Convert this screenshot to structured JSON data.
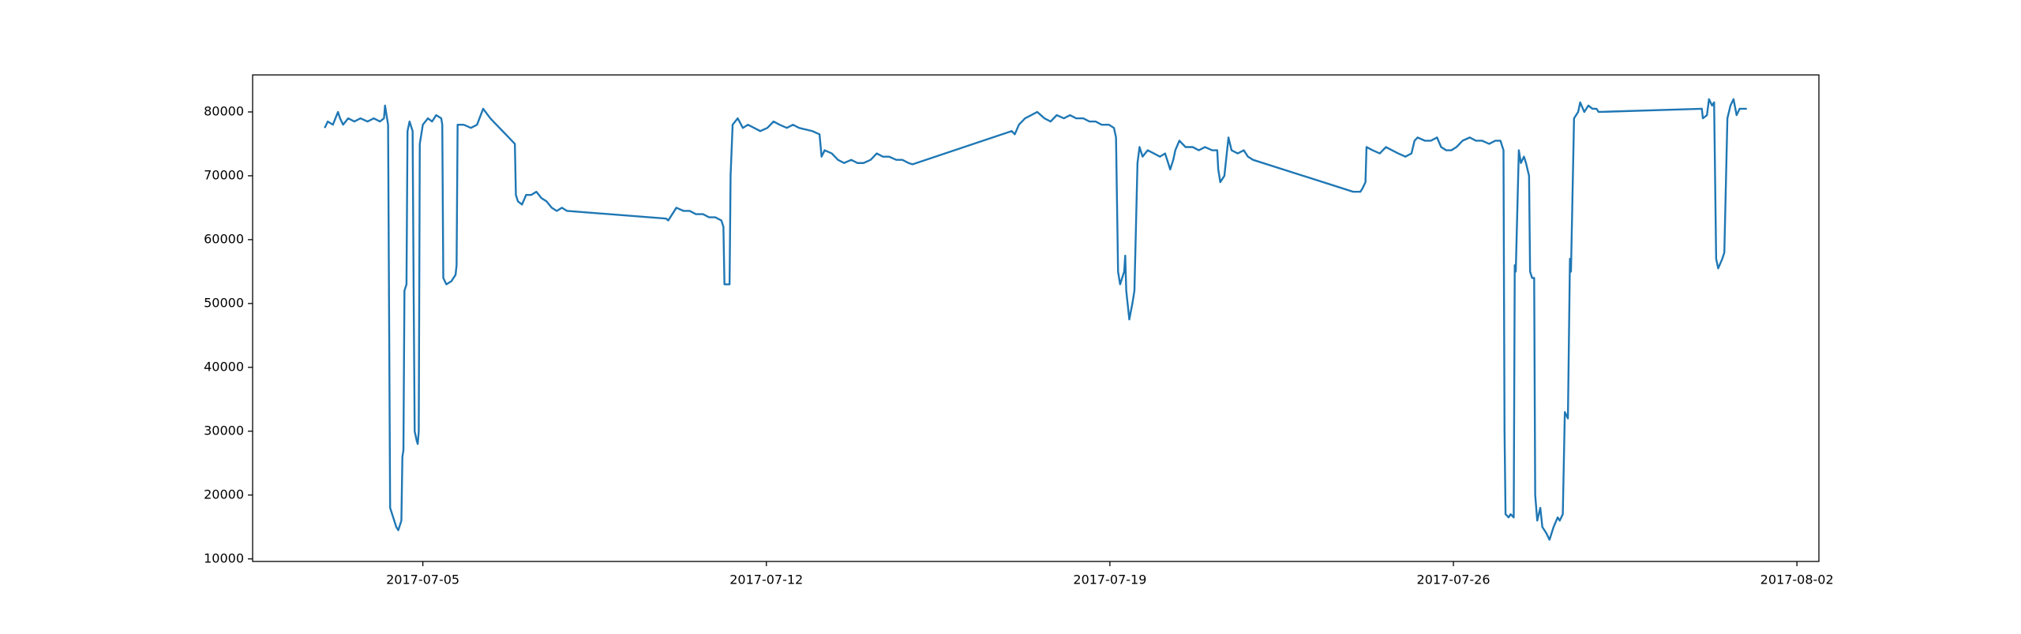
{
  "chart_data": {
    "type": "line",
    "color": "#1f77b4",
    "grid": false,
    "xlim": [
      "2017-07-01 12:45",
      "2017-08-02 10:45"
    ],
    "xticks": [
      "2017-07-05",
      "2017-07-12",
      "2017-07-19",
      "2017-07-26",
      "2017-08-02"
    ],
    "ylim": [
      9600,
      85800
    ],
    "yticks": [
      10000,
      20000,
      30000,
      40000,
      50000,
      60000,
      70000,
      80000
    ],
    "x": [
      "2017-07-03 00:00",
      "2017-07-03 01:30",
      "2017-07-03 04:00",
      "2017-07-03 06:30",
      "2017-07-03 07:30",
      "2017-07-03 09:00",
      "2017-07-03 11:30",
      "2017-07-03 14:30",
      "2017-07-03 17:30",
      "2017-07-03 21:00",
      "2017-07-04 00:00",
      "2017-07-04 03:00",
      "2017-07-04 05:00",
      "2017-07-04 05:30",
      "2017-07-04 06:30",
      "2017-07-04 07:00",
      "2017-07-04 08:00",
      "2017-07-04 09:30",
      "2017-07-04 11:00",
      "2017-07-04 12:00",
      "2017-07-04 13:30",
      "2017-07-04 14:00",
      "2017-07-04 14:30",
      "2017-07-04 15:00",
      "2017-07-04 16:00",
      "2017-07-04 16:30",
      "2017-07-04 17:30",
      "2017-07-04 19:00",
      "2017-07-04 19:30",
      "2017-07-04 20:00",
      "2017-07-04 21:00",
      "2017-07-04 21:30",
      "2017-07-04 22:00",
      "2017-07-04 22:30",
      "2017-07-05 00:00",
      "2017-07-05 02:30",
      "2017-07-05 04:30",
      "2017-07-05 06:30",
      "2017-07-05 09:00",
      "2017-07-05 09:30",
      "2017-07-05 10:00",
      "2017-07-05 11:30",
      "2017-07-05 14:00",
      "2017-07-05 16:00",
      "2017-07-05 16:30",
      "2017-07-05 17:00",
      "2017-07-05 20:00",
      "2017-07-05 23:30",
      "2017-07-06 02:30",
      "2017-07-06 05:30",
      "2017-07-06 09:00",
      "2017-07-06 12:00",
      "2017-07-06 15:00",
      "2017-07-06 18:00",
      "2017-07-06 19:30",
      "2017-07-06 21:00",
      "2017-07-06 21:30",
      "2017-07-06 22:30",
      "2017-07-07 00:30",
      "2017-07-07 02:30",
      "2017-07-07 05:00",
      "2017-07-07 07:30",
      "2017-07-07 10:00",
      "2017-07-07 12:30",
      "2017-07-07 15:00",
      "2017-07-07 17:30",
      "2017-07-07 20:00",
      "2017-07-07 22:30",
      "2017-07-09 23:00",
      "2017-07-10 00:00",
      "2017-07-10 01:00",
      "2017-07-10 04:00",
      "2017-07-10 07:30",
      "2017-07-10 10:30",
      "2017-07-10 13:30",
      "2017-07-10 17:00",
      "2017-07-10 20:00",
      "2017-07-10 23:00",
      "2017-07-11 02:00",
      "2017-07-11 03:00",
      "2017-07-11 03:30",
      "2017-07-11 05:00",
      "2017-07-11 06:00",
      "2017-07-11 06:30",
      "2017-07-11 07:30",
      "2017-07-11 10:00",
      "2017-07-11 12:30",
      "2017-07-11 15:00",
      "2017-07-11 18:00",
      "2017-07-11 21:00",
      "2017-07-12 00:30",
      "2017-07-12 03:30",
      "2017-07-12 06:30",
      "2017-07-12 10:00",
      "2017-07-12 13:00",
      "2017-07-12 16:00",
      "2017-07-12 22:30",
      "2017-07-13 02:00",
      "2017-07-13 03:00",
      "2017-07-13 04:30",
      "2017-07-13 08:00",
      "2017-07-13 11:00",
      "2017-07-13 14:00",
      "2017-07-13 17:30",
      "2017-07-13 20:30",
      "2017-07-13 23:30",
      "2017-07-14 03:00",
      "2017-07-14 06:00",
      "2017-07-14 09:00",
      "2017-07-14 12:00",
      "2017-07-14 15:30",
      "2017-07-14 18:30",
      "2017-07-14 21:30",
      "2017-07-14 23:30",
      "2017-07-17 00:00",
      "2017-07-17 01:30",
      "2017-07-17 03:30",
      "2017-07-17 06:30",
      "2017-07-17 09:30",
      "2017-07-17 12:30",
      "2017-07-17 16:00",
      "2017-07-17 19:00",
      "2017-07-17 22:00",
      "2017-07-18 01:30",
      "2017-07-18 04:30",
      "2017-07-18 07:30",
      "2017-07-18 11:00",
      "2017-07-18 14:00",
      "2017-07-18 17:00",
      "2017-07-18 20:00",
      "2017-07-18 23:30",
      "2017-07-19 02:00",
      "2017-07-19 03:00",
      "2017-07-19 04:00",
      "2017-07-19 05:00",
      "2017-07-19 07:00",
      "2017-07-19 07:30",
      "2017-07-19 08:00",
      "2017-07-19 09:30",
      "2017-07-19 11:00",
      "2017-07-19 12:00",
      "2017-07-19 13:30",
      "2017-07-19 14:30",
      "2017-07-19 16:00",
      "2017-07-19 18:30",
      "2017-07-19 21:30",
      "2017-07-20 00:30",
      "2017-07-20 03:00",
      "2017-07-20 04:30",
      "2017-07-20 05:30",
      "2017-07-20 07:00",
      "2017-07-20 08:00",
      "2017-07-20 10:00",
      "2017-07-20 13:00",
      "2017-07-20 16:30",
      "2017-07-20 19:30",
      "2017-07-20 22:30",
      "2017-07-21 02:00",
      "2017-07-21 04:30",
      "2017-07-21 05:00",
      "2017-07-21 06:00",
      "2017-07-21 08:00",
      "2017-07-21 10:00",
      "2017-07-21 11:30",
      "2017-07-21 14:30",
      "2017-07-21 17:30",
      "2017-07-21 19:30",
      "2017-07-21 22:00",
      "2017-07-23 23:00",
      "2017-07-24 02:30",
      "2017-07-24 03:30",
      "2017-07-24 05:00",
      "2017-07-24 05:30",
      "2017-07-24 08:30",
      "2017-07-24 12:00",
      "2017-07-24 15:00",
      "2017-07-24 18:00",
      "2017-07-24 21:00",
      "2017-07-25 00:30",
      "2017-07-25 03:30",
      "2017-07-25 05:00",
      "2017-07-25 06:30",
      "2017-07-25 10:00",
      "2017-07-25 13:00",
      "2017-07-25 16:00",
      "2017-07-25 18:00",
      "2017-07-25 20:30",
      "2017-07-25 23:00",
      "2017-07-26 01:30",
      "2017-07-26 04:30",
      "2017-07-26 08:00",
      "2017-07-26 11:00",
      "2017-07-26 14:00",
      "2017-07-26 17:30",
      "2017-07-26 20:30",
      "2017-07-26 23:00",
      "2017-07-27 00:30",
      "2017-07-27 01:00",
      "2017-07-27 01:30",
      "2017-07-27 03:00",
      "2017-07-27 04:00",
      "2017-07-27 05:30",
      "2017-07-27 06:00",
      "2017-07-27 06:30",
      "2017-07-27 08:00",
      "2017-07-27 09:00",
      "2017-07-27 10:30",
      "2017-07-27 11:30",
      "2017-07-27 13:00",
      "2017-07-27 13:30",
      "2017-07-27 14:30",
      "2017-07-27 15:30",
      "2017-07-27 16:00",
      "2017-07-27 17:00",
      "2017-07-27 18:30",
      "2017-07-27 19:30",
      "2017-07-27 21:30",
      "2017-07-27 23:00",
      "2017-07-28 01:00",
      "2017-07-28 03:00",
      "2017-07-28 04:00",
      "2017-07-28 05:30",
      "2017-07-28 06:30",
      "2017-07-28 08:00",
      "2017-07-28 09:00",
      "2017-07-28 09:30",
      "2017-07-28 11:00",
      "2017-07-28 13:00",
      "2017-07-28 14:00",
      "2017-07-28 16:00",
      "2017-07-28 18:00",
      "2017-07-28 20:00",
      "2017-07-28 22:00",
      "2017-07-28 23:00",
      "2017-07-31 01:30",
      "2017-07-31 02:00",
      "2017-07-31 04:00",
      "2017-07-31 05:00",
      "2017-07-31 06:30",
      "2017-07-31 07:30",
      "2017-07-31 08:30",
      "2017-07-31 09:30",
      "2017-07-31 11:30",
      "2017-07-31 12:30",
      "2017-07-31 14:00",
      "2017-07-31 15:30",
      "2017-07-31 17:00",
      "2017-07-31 18:30",
      "2017-07-31 20:00",
      "2017-07-31 22:00",
      "2017-07-31 23:30"
    ],
    "values": [
      77500,
      78500,
      78000,
      80000,
      79000,
      78000,
      79000,
      78500,
      79000,
      78500,
      79000,
      78500,
      79000,
      81000,
      79000,
      78000,
      18000,
      16500,
      15000,
      14500,
      16000,
      26000,
      27000,
      52000,
      53000,
      77000,
      78500,
      77000,
      52000,
      30000,
      28500,
      28000,
      30000,
      75000,
      78000,
      79000,
      78500,
      79500,
      79000,
      78000,
      54000,
      53000,
      53500,
      54500,
      56000,
      78000,
      78000,
      77500,
      78000,
      80500,
      79000,
      78000,
      77000,
      76000,
      75500,
      75000,
      67000,
      66000,
      65500,
      67000,
      67000,
      67500,
      66500,
      66000,
      65000,
      64500,
      65000,
      64500,
      63300,
      63000,
      63500,
      65000,
      64500,
      64500,
      64000,
      64000,
      63500,
      63500,
      63000,
      62000,
      53000,
      53000,
      53000,
      70000,
      78000,
      79000,
      77500,
      78000,
      77500,
      77000,
      77500,
      78500,
      78000,
      77500,
      78000,
      77500,
      77000,
      76500,
      73000,
      74000,
      73500,
      72500,
      72000,
      72500,
      72000,
      72000,
      72500,
      73500,
      73000,
      73000,
      72500,
      72500,
      72000,
      71800,
      77000,
      76500,
      78000,
      79000,
      79500,
      80000,
      79000,
      78500,
      79500,
      79000,
      79500,
      79000,
      79000,
      78500,
      78500,
      78000,
      78000,
      77500,
      76000,
      55000,
      53000,
      55000,
      57500,
      52000,
      47500,
      50000,
      52000,
      72000,
      74500,
      73000,
      74000,
      73500,
      73000,
      73500,
      72000,
      71000,
      72500,
      74000,
      75500,
      74500,
      74500,
      74000,
      74500,
      74000,
      74000,
      71000,
      69000,
      70000,
      76000,
      74000,
      73500,
      74000,
      73000,
      72500,
      67500,
      67500,
      68000,
      69000,
      74500,
      74000,
      73500,
      74500,
      74000,
      73500,
      73000,
      73500,
      75500,
      76000,
      75500,
      75500,
      76000,
      74500,
      74000,
      74000,
      74500,
      75500,
      76000,
      75500,
      75500,
      75000,
      75500,
      75500,
      74000,
      30000,
      17000,
      16500,
      17000,
      16500,
      56000,
      55000,
      74000,
      72000,
      73000,
      72000,
      70000,
      55000,
      54000,
      54000,
      20000,
      16000,
      18000,
      15000,
      14000,
      13000,
      15000,
      16500,
      16000,
      17000,
      33000,
      32000,
      57000,
      55000,
      79000,
      80000,
      81500,
      80000,
      81000,
      80500,
      80500,
      80000,
      80500,
      79000,
      79500,
      82000,
      81000,
      81500,
      57000,
      55500,
      57000,
      58000,
      79000,
      81000,
      82000,
      79500,
      80500,
      80500,
      80500
    ]
  }
}
